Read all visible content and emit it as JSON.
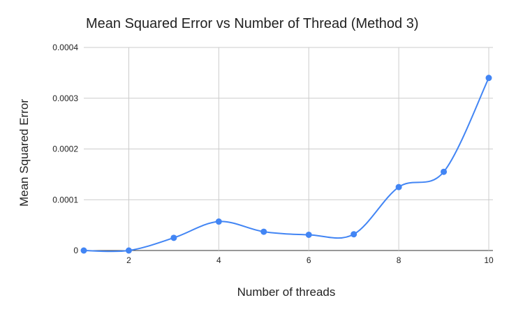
{
  "chart_data": {
    "type": "line",
    "title": "Mean Squared Error vs Number of Thread (Method 3)",
    "xlabel": "Number of threads",
    "ylabel": "Mean Squared Error",
    "xlim": [
      1,
      10
    ],
    "ylim": [
      0,
      0.0004
    ],
    "x_ticks": [
      2,
      4,
      6,
      8,
      10
    ],
    "y_ticks": [
      0,
      0.0001,
      0.0002,
      0.0003,
      0.0004
    ],
    "y_tick_labels": [
      "0",
      "0.0001",
      "0.0002",
      "0.0003",
      "0.0004"
    ],
    "grid": true,
    "smooth": true,
    "series": [
      {
        "color": "#4285f4",
        "x": [
          1,
          2,
          3,
          4,
          5,
          6,
          7,
          8,
          9,
          10
        ],
        "values": [
          0.0,
          0.0,
          2.5e-05,
          5.7e-05,
          3.7e-05,
          3.1e-05,
          3.2e-05,
          0.000125,
          0.000155,
          0.00034
        ]
      }
    ]
  }
}
